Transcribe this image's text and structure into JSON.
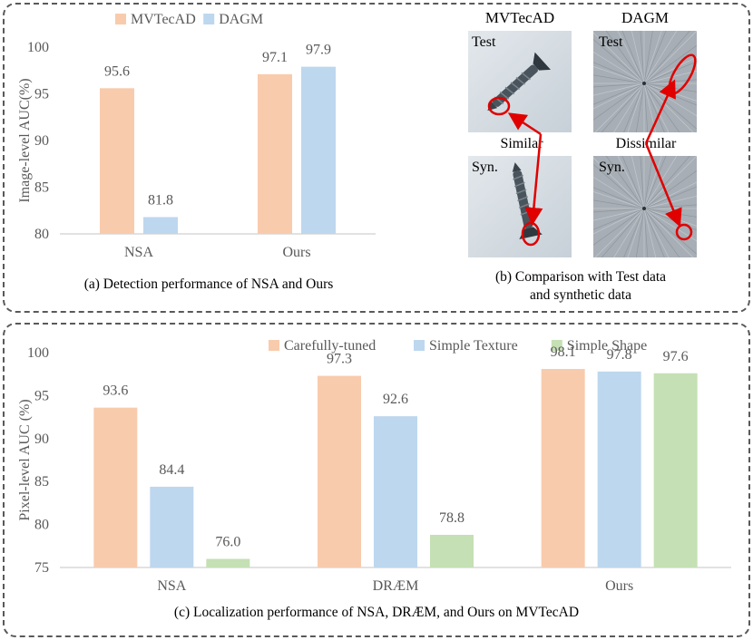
{
  "colors": {
    "series1": "#f8cbad",
    "series2": "#bdd7ee",
    "series3": "#c5e0b4",
    "axis": "#d9d9d9",
    "text": "#595959",
    "marker": "#e00000"
  },
  "chart_data": [
    {
      "type": "bar",
      "categories": [
        "NSA",
        "Ours"
      ],
      "series": [
        {
          "name": "MVTecAD",
          "values": [
            95.6,
            97.1
          ]
        },
        {
          "name": "DAGM",
          "values": [
            81.8,
            97.9
          ]
        }
      ],
      "value_labels": [
        [
          "95.6",
          "97.1"
        ],
        [
          "81.8",
          "97.9"
        ]
      ],
      "ylabel": "Image-level AUC(%)",
      "ylim": [
        80,
        100
      ],
      "yticks": [
        80,
        85,
        90,
        95,
        100
      ],
      "legend": "top",
      "grid": false,
      "caption": "(a) Detection performance of NSA and Ours"
    },
    {
      "type": "bar",
      "categories": [
        "NSA",
        "DRÆM",
        "Ours"
      ],
      "series": [
        {
          "name": "Carefully-tuned",
          "values": [
            93.6,
            97.3,
            98.1
          ]
        },
        {
          "name": "Simple Texture",
          "values": [
            84.4,
            92.6,
            97.8
          ]
        },
        {
          "name": "Simple Shape",
          "values": [
            76.0,
            78.8,
            97.6
          ]
        }
      ],
      "value_labels": [
        [
          "93.6",
          "97.3",
          "98.1"
        ],
        [
          "84.4",
          "92.6",
          "97.8"
        ],
        [
          "76.0",
          "78.8",
          "97.6"
        ]
      ],
      "ylabel": "Pixel-level AUC (%)",
      "ylim": [
        75,
        100
      ],
      "yticks": [
        75,
        80,
        85,
        90,
        95,
        100
      ],
      "legend": "top",
      "grid": false,
      "caption": "(c) Localization performance of NSA, DRÆM, and Ours on MVTecAD"
    }
  ],
  "comparison": {
    "columns": [
      "MVTecAD",
      "DAGM"
    ],
    "row_labels": [
      "Test",
      "Syn."
    ],
    "relations": [
      "Similar",
      "Dissimilar"
    ],
    "caption_line1": "(b) Comparison with Test data",
    "caption_line2": "and synthetic data"
  }
}
